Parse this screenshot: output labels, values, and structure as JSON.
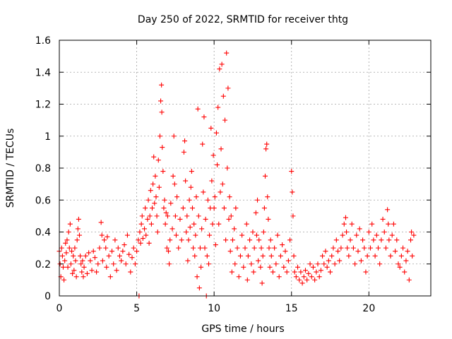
{
  "chart_data": {
    "type": "scatter",
    "title": "Day 250 of 2022, SRMTID for receiver thtg",
    "xlabel": "GPS time / hours",
    "ylabel": "SRMTID / TECUs",
    "xlim": [
      0,
      24
    ],
    "ylim": [
      0,
      1.6
    ],
    "xticks": [
      0,
      5,
      10,
      15,
      20
    ],
    "yticks": [
      0,
      0.2,
      0.4,
      0.6,
      0.8,
      1,
      1.2,
      1.4,
      1.6
    ],
    "xtick_labels": [
      "0",
      "5",
      "10",
      "15",
      "20"
    ],
    "ytick_labels": [
      "0",
      "0.2",
      "0.4",
      "0.6",
      "0.8",
      "1",
      "1.2",
      "1.4",
      "1.6"
    ],
    "grid": true,
    "marker": "plus",
    "color": "#ff0000",
    "series": [
      {
        "name": "SRMTID",
        "points": [
          [
            0.0,
            0.28
          ],
          [
            0.05,
            0.2
          ],
          [
            0.1,
            0.12
          ],
          [
            0.15,
            0.3
          ],
          [
            0.2,
            0.25
          ],
          [
            0.25,
            0.18
          ],
          [
            0.3,
            0.1
          ],
          [
            0.35,
            0.22
          ],
          [
            0.4,
            0.33
          ],
          [
            0.45,
            0.27
          ],
          [
            0.5,
            0.35
          ],
          [
            0.55,
            0.18
          ],
          [
            0.6,
            0.4
          ],
          [
            0.65,
            0.3
          ],
          [
            0.7,
            0.45
          ],
          [
            0.75,
            0.2
          ],
          [
            0.8,
            0.28
          ],
          [
            0.85,
            0.14
          ],
          [
            0.9,
            0.25
          ],
          [
            0.95,
            0.16
          ],
          [
            1.0,
            0.3
          ],
          [
            1.05,
            0.22
          ],
          [
            1.1,
            0.12
          ],
          [
            1.15,
            0.35
          ],
          [
            1.2,
            0.42
          ],
          [
            1.25,
            0.48
          ],
          [
            1.3,
            0.38
          ],
          [
            1.35,
            0.25
          ],
          [
            1.4,
            0.2
          ],
          [
            1.45,
            0.15
          ],
          [
            1.5,
            0.22
          ],
          [
            1.55,
            0.12
          ],
          [
            1.6,
            0.18
          ],
          [
            1.7,
            0.25
          ],
          [
            1.8,
            0.14
          ],
          [
            1.9,
            0.27
          ],
          [
            2.0,
            0.22
          ],
          [
            2.1,
            0.16
          ],
          [
            2.2,
            0.28
          ],
          [
            2.3,
            0.24
          ],
          [
            2.4,
            0.15
          ],
          [
            2.5,
            0.2
          ],
          [
            2.6,
            0.3
          ],
          [
            2.7,
            0.46
          ],
          [
            2.75,
            0.38
          ],
          [
            2.8,
            0.22
          ],
          [
            2.9,
            0.35
          ],
          [
            3.0,
            0.3
          ],
          [
            3.05,
            0.18
          ],
          [
            3.1,
            0.37
          ],
          [
            3.2,
            0.25
          ],
          [
            3.3,
            0.12
          ],
          [
            3.4,
            0.28
          ],
          [
            3.5,
            0.2
          ],
          [
            3.6,
            0.35
          ],
          [
            3.7,
            0.16
          ],
          [
            3.8,
            0.3
          ],
          [
            3.9,
            0.25
          ],
          [
            4.0,
            0.22
          ],
          [
            4.1,
            0.28
          ],
          [
            4.2,
            0.32
          ],
          [
            4.3,
            0.2
          ],
          [
            4.4,
            0.38
          ],
          [
            4.5,
            0.26
          ],
          [
            4.6,
            0.15
          ],
          [
            4.7,
            0.24
          ],
          [
            4.8,
            0.3
          ],
          [
            4.9,
            0.2
          ],
          [
            5.0,
            0.28
          ],
          [
            5.1,
            0.35
          ],
          [
            5.15,
            0.0
          ],
          [
            5.2,
            0.4
          ],
          [
            5.25,
            0.33
          ],
          [
            5.3,
            0.45
          ],
          [
            5.35,
            0.5
          ],
          [
            5.4,
            0.36
          ],
          [
            5.5,
            0.42
          ],
          [
            5.55,
            0.55
          ],
          [
            5.6,
            0.38
          ],
          [
            5.7,
            0.48
          ],
          [
            5.75,
            0.6
          ],
          [
            5.8,
            0.33
          ],
          [
            5.85,
            0.5
          ],
          [
            5.9,
            0.66
          ],
          [
            5.95,
            0.45
          ],
          [
            6.0,
            0.55
          ],
          [
            6.05,
            0.7
          ],
          [
            6.1,
            0.87
          ],
          [
            6.15,
            0.58
          ],
          [
            6.2,
            0.75
          ],
          [
            6.25,
            0.62
          ],
          [
            6.3,
            0.5
          ],
          [
            6.35,
            0.4
          ],
          [
            6.4,
            0.85
          ],
          [
            6.45,
            0.68
          ],
          [
            6.5,
            1.0
          ],
          [
            6.55,
            1.22
          ],
          [
            6.6,
            1.32
          ],
          [
            6.62,
            1.15
          ],
          [
            6.65,
            0.93
          ],
          [
            6.7,
            0.78
          ],
          [
            6.75,
            0.55
          ],
          [
            6.8,
            0.6
          ],
          [
            6.85,
            0.45
          ],
          [
            6.9,
            0.52
          ],
          [
            6.95,
            0.3
          ],
          [
            7.0,
            0.5
          ],
          [
            7.05,
            0.28
          ],
          [
            7.1,
            0.2
          ],
          [
            7.15,
            0.35
          ],
          [
            7.2,
            0.58
          ],
          [
            7.3,
            0.42
          ],
          [
            7.35,
            0.75
          ],
          [
            7.4,
            1.0
          ],
          [
            7.45,
            0.7
          ],
          [
            7.5,
            0.5
          ],
          [
            7.55,
            0.38
          ],
          [
            7.6,
            0.62
          ],
          [
            7.7,
            0.3
          ],
          [
            7.8,
            0.48
          ],
          [
            7.9,
            0.35
          ],
          [
            8.0,
            0.55
          ],
          [
            8.05,
            0.9
          ],
          [
            8.1,
            0.97
          ],
          [
            8.15,
            0.72
          ],
          [
            8.2,
            0.4
          ],
          [
            8.25,
            0.5
          ],
          [
            8.3,
            0.22
          ],
          [
            8.35,
            0.35
          ],
          [
            8.4,
            0.6
          ],
          [
            8.45,
            0.43
          ],
          [
            8.5,
            0.68
          ],
          [
            8.55,
            0.78
          ],
          [
            8.6,
            0.55
          ],
          [
            8.65,
            0.3
          ],
          [
            8.7,
            0.45
          ],
          [
            8.75,
            0.25
          ],
          [
            8.8,
            0.38
          ],
          [
            8.85,
            0.62
          ],
          [
            8.9,
            0.12
          ],
          [
            8.95,
            1.17
          ],
          [
            9.0,
            0.5
          ],
          [
            9.05,
            0.05
          ],
          [
            9.1,
            0.3
          ],
          [
            9.15,
            0.18
          ],
          [
            9.2,
            0.42
          ],
          [
            9.25,
            0.95
          ],
          [
            9.3,
            0.65
          ],
          [
            9.35,
            1.12
          ],
          [
            9.4,
            0.3
          ],
          [
            9.45,
            0.48
          ],
          [
            9.5,
            0.0
          ],
          [
            9.55,
            0.25
          ],
          [
            9.6,
            0.6
          ],
          [
            9.65,
            0.2
          ],
          [
            9.7,
            0.38
          ],
          [
            9.75,
            0.55
          ],
          [
            9.8,
            1.05
          ],
          [
            9.85,
            0.72
          ],
          [
            9.9,
            0.45
          ],
          [
            9.95,
            0.88
          ],
          [
            10.0,
            0.55
          ],
          [
            10.05,
            0.62
          ],
          [
            10.1,
            0.32
          ],
          [
            10.15,
            1.02
          ],
          [
            10.2,
            0.82
          ],
          [
            10.25,
            1.18
          ],
          [
            10.3,
            0.45
          ],
          [
            10.35,
            1.42
          ],
          [
            10.4,
            0.65
          ],
          [
            10.45,
            0.92
          ],
          [
            10.5,
            1.45
          ],
          [
            10.55,
            0.7
          ],
          [
            10.6,
            1.25
          ],
          [
            10.65,
            0.55
          ],
          [
            10.7,
            1.1
          ],
          [
            10.75,
            0.35
          ],
          [
            10.8,
            1.52
          ],
          [
            10.85,
            0.8
          ],
          [
            10.9,
            1.3
          ],
          [
            10.95,
            0.48
          ],
          [
            11.0,
            0.62
          ],
          [
            11.05,
            0.28
          ],
          [
            11.1,
            0.5
          ],
          [
            11.15,
            0.15
          ],
          [
            11.2,
            0.35
          ],
          [
            11.3,
            0.42
          ],
          [
            11.35,
            0.2
          ],
          [
            11.4,
            0.55
          ],
          [
            11.5,
            0.3
          ],
          [
            11.6,
            0.12
          ],
          [
            11.7,
            0.25
          ],
          [
            11.8,
            0.38
          ],
          [
            11.9,
            0.18
          ],
          [
            12.0,
            0.3
          ],
          [
            12.1,
            0.45
          ],
          [
            12.15,
            0.1
          ],
          [
            12.2,
            0.25
          ],
          [
            12.3,
            0.35
          ],
          [
            12.4,
            0.2
          ],
          [
            12.5,
            0.4
          ],
          [
            12.55,
            0.15
          ],
          [
            12.6,
            0.3
          ],
          [
            12.7,
            0.52
          ],
          [
            12.75,
            0.38
          ],
          [
            12.8,
            0.6
          ],
          [
            12.85,
            0.22
          ],
          [
            12.9,
            0.35
          ],
          [
            13.0,
            0.18
          ],
          [
            13.05,
            0.3
          ],
          [
            13.1,
            0.08
          ],
          [
            13.15,
            0.25
          ],
          [
            13.2,
            0.4
          ],
          [
            13.25,
            0.55
          ],
          [
            13.3,
            0.75
          ],
          [
            13.35,
            0.92
          ],
          [
            13.4,
            0.95
          ],
          [
            13.45,
            0.62
          ],
          [
            13.5,
            0.48
          ],
          [
            13.55,
            0.3
          ],
          [
            13.6,
            0.18
          ],
          [
            13.65,
            0.35
          ],
          [
            13.7,
            0.25
          ],
          [
            13.8,
            0.15
          ],
          [
            13.9,
            0.3
          ],
          [
            14.0,
            0.2
          ],
          [
            14.1,
            0.38
          ],
          [
            14.2,
            0.12
          ],
          [
            14.3,
            0.25
          ],
          [
            14.4,
            0.32
          ],
          [
            14.5,
            0.18
          ],
          [
            14.6,
            0.28
          ],
          [
            14.7,
            0.15
          ],
          [
            14.8,
            0.22
          ],
          [
            14.9,
            0.35
          ],
          [
            15.0,
            0.78
          ],
          [
            15.05,
            0.65
          ],
          [
            15.1,
            0.5
          ],
          [
            15.15,
            0.25
          ],
          [
            15.2,
            0.15
          ],
          [
            15.3,
            0.12
          ],
          [
            15.4,
            0.18
          ],
          [
            15.5,
            0.1
          ],
          [
            15.6,
            0.15
          ],
          [
            15.7,
            0.08
          ],
          [
            15.8,
            0.12
          ],
          [
            15.9,
            0.16
          ],
          [
            16.0,
            0.1
          ],
          [
            16.1,
            0.14
          ],
          [
            16.2,
            0.2
          ],
          [
            16.3,
            0.12
          ],
          [
            16.4,
            0.18
          ],
          [
            16.5,
            0.1
          ],
          [
            16.6,
            0.15
          ],
          [
            16.7,
            0.2
          ],
          [
            16.8,
            0.12
          ],
          [
            16.9,
            0.16
          ],
          [
            17.0,
            0.25
          ],
          [
            17.1,
            0.2
          ],
          [
            17.2,
            0.28
          ],
          [
            17.3,
            0.18
          ],
          [
            17.4,
            0.22
          ],
          [
            17.5,
            0.15
          ],
          [
            17.6,
            0.25
          ],
          [
            17.7,
            0.3
          ],
          [
            17.8,
            0.2
          ],
          [
            17.9,
            0.35
          ],
          [
            18.0,
            0.28
          ],
          [
            18.1,
            0.22
          ],
          [
            18.2,
            0.3
          ],
          [
            18.3,
            0.38
          ],
          [
            18.4,
            0.45
          ],
          [
            18.5,
            0.49
          ],
          [
            18.55,
            0.4
          ],
          [
            18.6,
            0.3
          ],
          [
            18.7,
            0.25
          ],
          [
            18.8,
            0.35
          ],
          [
            18.9,
            0.45
          ],
          [
            19.0,
            0.3
          ],
          [
            19.1,
            0.2
          ],
          [
            19.2,
            0.38
          ],
          [
            19.3,
            0.28
          ],
          [
            19.4,
            0.42
          ],
          [
            19.5,
            0.22
          ],
          [
            19.6,
            0.35
          ],
          [
            19.7,
            0.3
          ],
          [
            19.8,
            0.15
          ],
          [
            19.9,
            0.25
          ],
          [
            20.0,
            0.4
          ],
          [
            20.1,
            0.3
          ],
          [
            20.2,
            0.45
          ],
          [
            20.3,
            0.35
          ],
          [
            20.4,
            0.25
          ],
          [
            20.5,
            0.38
          ],
          [
            20.6,
            0.3
          ],
          [
            20.7,
            0.2
          ],
          [
            20.8,
            0.35
          ],
          [
            20.9,
            0.48
          ],
          [
            21.0,
            0.4
          ],
          [
            21.1,
            0.3
          ],
          [
            21.2,
            0.54
          ],
          [
            21.25,
            0.45
          ],
          [
            21.3,
            0.35
          ],
          [
            21.4,
            0.25
          ],
          [
            21.5,
            0.38
          ],
          [
            21.6,
            0.45
          ],
          [
            21.7,
            0.28
          ],
          [
            21.8,
            0.35
          ],
          [
            21.9,
            0.2
          ],
          [
            22.0,
            0.18
          ],
          [
            22.1,
            0.25
          ],
          [
            22.2,
            0.3
          ],
          [
            22.3,
            0.15
          ],
          [
            22.4,
            0.22
          ],
          [
            22.5,
            0.28
          ],
          [
            22.6,
            0.1
          ],
          [
            22.7,
            0.35
          ],
          [
            22.75,
            0.4
          ],
          [
            22.8,
            0.25
          ],
          [
            22.9,
            0.38
          ]
        ]
      }
    ]
  }
}
